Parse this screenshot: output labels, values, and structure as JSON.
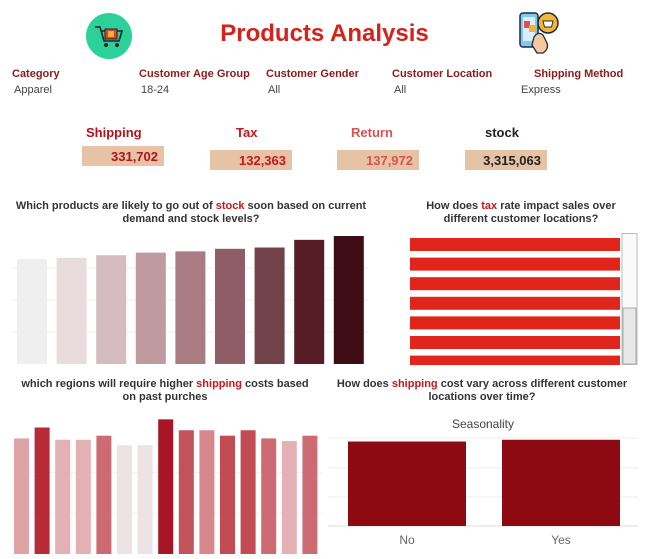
{
  "header": {
    "title": "Products Analysis",
    "left_icon": "shopping-cart-icon",
    "right_icon": "mobile-shopping-icon"
  },
  "filters": [
    {
      "label": "Category",
      "value": "Apparel"
    },
    {
      "label": "Customer Age Group",
      "value": "18-24"
    },
    {
      "label": "Customer Gender",
      "value": "All"
    },
    {
      "label": "Customer Location",
      "value": "All"
    },
    {
      "label": "Shipping Method",
      "value": "Express"
    }
  ],
  "kpis": [
    {
      "label": "Shipping",
      "value": "331,702",
      "label_color": "#b0141e",
      "value_color": "#b0141e"
    },
    {
      "label": "Tax",
      "value": "132,363",
      "label_color": "#c8161d",
      "value_color": "#c8161d"
    },
    {
      "label": "Return",
      "value": "137,972",
      "label_color": "#d9534f",
      "value_color": "#d9534f"
    },
    {
      "label": "stock",
      "value": "3,315,063",
      "label_color": "#222222",
      "value_color": "#222222"
    }
  ],
  "questions": {
    "q1": {
      "before": "Which products are likely to go out of ",
      "highlight": "stock",
      "after": " soon based on current demand and stock levels?"
    },
    "q2": {
      "before": "How does ",
      "highlight": "tax",
      "after": " rate impact sales over different customer locations?"
    },
    "q3": {
      "before": "which regions will require higher ",
      "highlight": "shipping",
      "after": " costs based on past purches"
    },
    "q4": {
      "before": "How does ",
      "highlight": "shipping",
      "after": " cost vary across different customer locations over time?"
    }
  },
  "chart_data": [
    {
      "type": "bar",
      "chart": "stock-outlook",
      "values": [
        0.82,
        0.83,
        0.85,
        0.87,
        0.88,
        0.9,
        0.91,
        0.97,
        1.0
      ],
      "colors": [
        "#efefef",
        "#e8dcdd",
        "#d4bcc0",
        "#bf9ba0",
        "#a87c82",
        "#8e5d65",
        "#73434b",
        "#561d27",
        "#3f0d15"
      ],
      "ylim": [
        0,
        1.0
      ]
    },
    {
      "type": "bar",
      "chart": "tax-by-location",
      "orientation": "horizontal",
      "values": [
        1,
        1,
        1,
        1,
        1,
        1,
        1
      ],
      "color": "#e0251b",
      "scrollbar": true
    },
    {
      "type": "bar",
      "chart": "shipping-by-region",
      "values": [
        0.85,
        0.93,
        0.84,
        0.84,
        0.87,
        0.8,
        0.8,
        0.99,
        0.91,
        0.91,
        0.87,
        0.91,
        0.85,
        0.83,
        0.87
      ],
      "colors": [
        "#dfa3a6",
        "#b82a35",
        "#e3b0b3",
        "#e3b0b3",
        "#cc6c72",
        "#ede3e4",
        "#ede3e4",
        "#a81625",
        "#c4525a",
        "#d7888d",
        "#c24b54",
        "#c24b54",
        "#cc6c72",
        "#e3b0b3",
        "#cc6c72"
      ],
      "ylim": [
        0,
        1.0
      ]
    },
    {
      "type": "bar",
      "chart": "shipping-over-time",
      "title": "Seasonality",
      "categories": [
        "No",
        "Yes"
      ],
      "values": [
        0.96,
        0.98
      ],
      "color": "#8d0a13",
      "ylim": [
        0,
        1.0
      ]
    }
  ]
}
